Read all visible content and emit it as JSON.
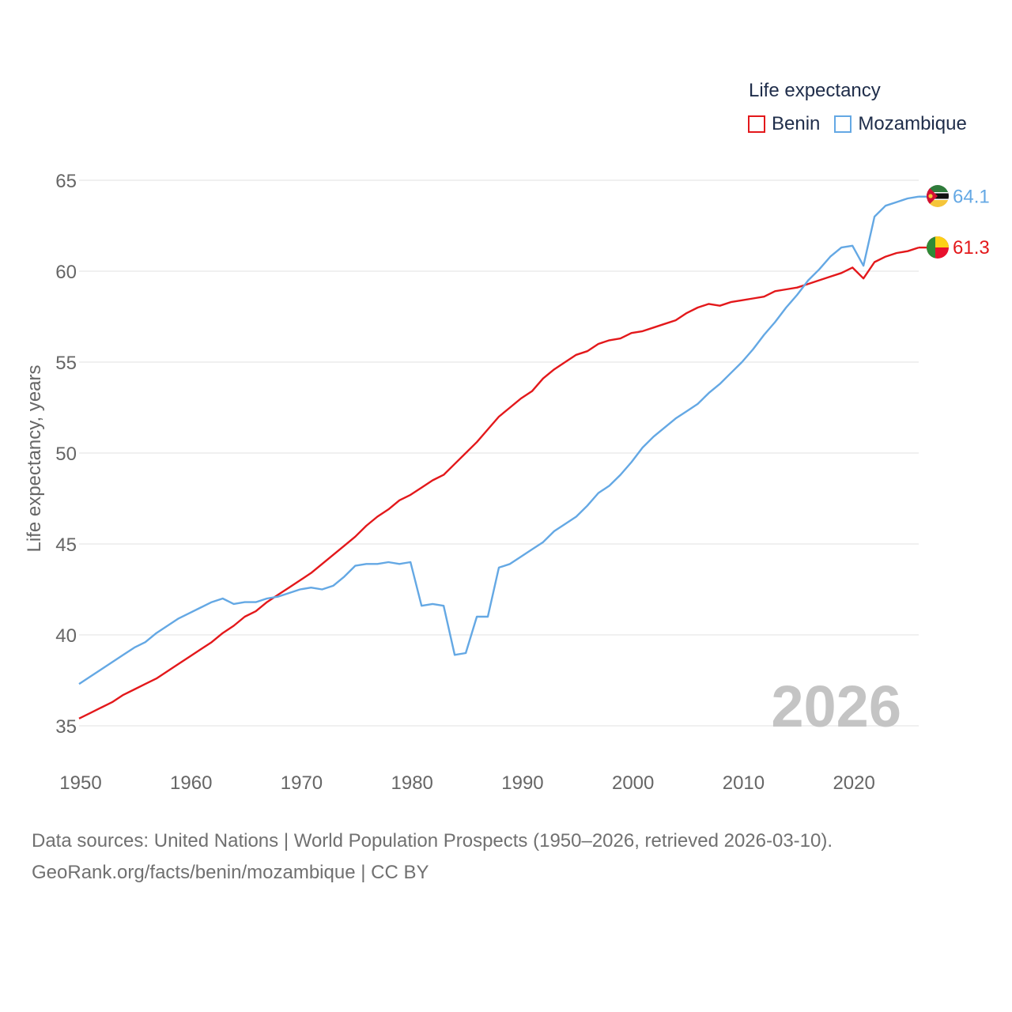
{
  "chart_data": {
    "type": "line",
    "legend_title": "Life expectancy",
    "ylabel": "Life expectancy, years",
    "xlabel": "",
    "xlim": [
      1950,
      2026
    ],
    "ylim": [
      33,
      66
    ],
    "yticks": [
      35,
      40,
      45,
      50,
      55,
      60,
      65
    ],
    "xticks": [
      1950,
      1960,
      1970,
      1980,
      1990,
      2000,
      2010,
      2020
    ],
    "year_label": "2026",
    "legend_position": "top-right",
    "grid": true,
    "series": [
      {
        "name": "Benin",
        "color": "#e3181b",
        "end_label": "61.3",
        "flag_icon": "benin-flag-icon",
        "x": [
          1950,
          1951,
          1952,
          1953,
          1954,
          1955,
          1956,
          1957,
          1958,
          1959,
          1960,
          1961,
          1962,
          1963,
          1964,
          1965,
          1966,
          1967,
          1968,
          1969,
          1970,
          1971,
          1972,
          1973,
          1974,
          1975,
          1976,
          1977,
          1978,
          1979,
          1980,
          1981,
          1982,
          1983,
          1984,
          1985,
          1986,
          1987,
          1988,
          1989,
          1990,
          1991,
          1992,
          1993,
          1994,
          1995,
          1996,
          1997,
          1998,
          1999,
          2000,
          2001,
          2002,
          2003,
          2004,
          2005,
          2006,
          2007,
          2008,
          2009,
          2010,
          2011,
          2012,
          2013,
          2014,
          2015,
          2016,
          2017,
          2018,
          2019,
          2020,
          2021,
          2022,
          2023,
          2024,
          2025,
          2026
        ],
        "values": [
          35.4,
          35.7,
          36.0,
          36.3,
          36.7,
          37.0,
          37.3,
          37.6,
          38.0,
          38.4,
          38.8,
          39.2,
          39.6,
          40.1,
          40.5,
          41.0,
          41.3,
          41.8,
          42.2,
          42.6,
          43.0,
          43.4,
          43.9,
          44.4,
          44.9,
          45.4,
          46.0,
          46.5,
          46.9,
          47.4,
          47.7,
          48.1,
          48.5,
          48.8,
          49.4,
          50.0,
          50.6,
          51.3,
          52.0,
          52.5,
          53.0,
          53.4,
          54.1,
          54.6,
          55.0,
          55.4,
          55.6,
          56.0,
          56.2,
          56.3,
          56.6,
          56.7,
          56.9,
          57.1,
          57.3,
          57.7,
          58.0,
          58.2,
          58.1,
          58.3,
          58.4,
          58.5,
          58.6,
          58.9,
          59.0,
          59.1,
          59.3,
          59.5,
          59.7,
          59.9,
          60.2,
          59.6,
          60.5,
          60.8,
          61.0,
          61.1,
          61.3
        ]
      },
      {
        "name": "Mozambique",
        "color": "#64a8e4",
        "end_label": "64.1",
        "flag_icon": "mozambique-flag-icon",
        "x": [
          1950,
          1951,
          1952,
          1953,
          1954,
          1955,
          1956,
          1957,
          1958,
          1959,
          1960,
          1961,
          1962,
          1963,
          1964,
          1965,
          1966,
          1967,
          1968,
          1969,
          1970,
          1971,
          1972,
          1973,
          1974,
          1975,
          1976,
          1977,
          1978,
          1979,
          1980,
          1981,
          1982,
          1983,
          1984,
          1985,
          1986,
          1987,
          1988,
          1989,
          1990,
          1991,
          1992,
          1993,
          1994,
          1995,
          1996,
          1997,
          1998,
          1999,
          2000,
          2001,
          2002,
          2003,
          2004,
          2005,
          2006,
          2007,
          2008,
          2009,
          2010,
          2011,
          2012,
          2013,
          2014,
          2015,
          2016,
          2017,
          2018,
          2019,
          2020,
          2021,
          2022,
          2023,
          2024,
          2025,
          2026
        ],
        "values": [
          37.3,
          37.7,
          38.1,
          38.5,
          38.9,
          39.3,
          39.6,
          40.1,
          40.5,
          40.9,
          41.2,
          41.5,
          41.8,
          42.0,
          41.7,
          41.8,
          41.8,
          42.0,
          42.1,
          42.3,
          42.5,
          42.6,
          42.5,
          42.7,
          43.2,
          43.8,
          43.9,
          43.9,
          44.0,
          43.9,
          44.0,
          41.6,
          41.7,
          41.6,
          38.9,
          39.0,
          41.0,
          41.0,
          43.7,
          43.9,
          44.3,
          44.7,
          45.1,
          45.7,
          46.1,
          46.5,
          47.1,
          47.8,
          48.2,
          48.8,
          49.5,
          50.3,
          50.9,
          51.4,
          51.9,
          52.3,
          52.7,
          53.3,
          53.8,
          54.4,
          55.0,
          55.7,
          56.5,
          57.2,
          58.0,
          58.7,
          59.5,
          60.1,
          60.8,
          61.3,
          61.4,
          60.3,
          63.0,
          63.6,
          63.8,
          64.0,
          64.1
        ]
      }
    ]
  },
  "source": {
    "line1": "Data sources: United Nations | World Population Prospects (1950–2026, retrieved 2026-03-10).",
    "line2": "GeoRank.org/facts/benin/mozambique | CC BY"
  },
  "colors": {
    "grid": "#e6e6e6",
    "tick_text": "#666666",
    "year_watermark": "#c4c4c4"
  }
}
